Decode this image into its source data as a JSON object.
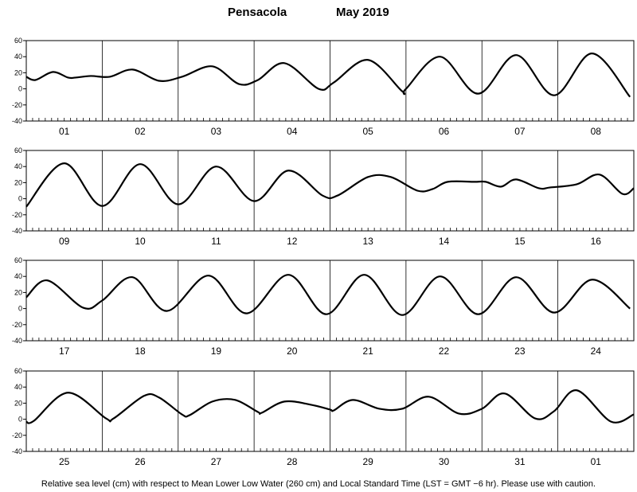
{
  "header": {
    "location": "Pensacola",
    "period": "May  2019"
  },
  "footer": {
    "note": "Relative sea level (cm) with respect to Mean Lower Low Water (260 cm) and Local Standard Time (LST = GMT −6 hr). Please use with caution."
  },
  "chart_data": {
    "type": "line",
    "ylabel": "",
    "xlabel": "",
    "ylim": [
      -40,
      60
    ],
    "y_ticks": [
      60,
      40,
      20,
      0,
      -20,
      -40
    ],
    "grid": "vertical day separators",
    "panels": [
      {
        "days": [
          "01",
          "02",
          "03",
          "04",
          "05",
          "06",
          "07",
          "08"
        ],
        "points": [
          [
            0.0,
            15
          ],
          [
            0.12,
            11
          ],
          [
            0.35,
            21
          ],
          [
            0.55,
            14
          ],
          [
            0.65,
            14
          ],
          [
            0.85,
            16
          ],
          [
            1.1,
            15
          ],
          [
            1.4,
            24
          ],
          [
            1.75,
            10
          ],
          [
            2.05,
            15
          ],
          [
            2.45,
            28
          ],
          [
            2.8,
            6
          ],
          [
            3.05,
            11
          ],
          [
            3.4,
            32
          ],
          [
            3.85,
            0
          ],
          [
            4.05,
            8
          ],
          [
            4.5,
            36
          ],
          [
            4.95,
            -3
          ],
          [
            5.0,
            0
          ],
          [
            5.45,
            40
          ],
          [
            5.95,
            -6
          ],
          [
            6.45,
            42
          ],
          [
            6.95,
            -8
          ],
          [
            7.45,
            44
          ],
          [
            7.95,
            -10
          ]
        ]
      },
      {
        "days": [
          "09",
          "10",
          "11",
          "12",
          "13",
          "14",
          "15",
          "16"
        ],
        "points": [
          [
            0.0,
            -10
          ],
          [
            0.5,
            44
          ],
          [
            1.0,
            -9
          ],
          [
            1.5,
            43
          ],
          [
            2.0,
            -7
          ],
          [
            2.5,
            40
          ],
          [
            3.0,
            -3
          ],
          [
            3.45,
            35
          ],
          [
            3.9,
            4
          ],
          [
            4.1,
            4
          ],
          [
            4.5,
            27
          ],
          [
            4.8,
            27
          ],
          [
            5.15,
            10
          ],
          [
            5.35,
            12
          ],
          [
            5.55,
            21
          ],
          [
            5.9,
            21
          ],
          [
            6.05,
            21
          ],
          [
            6.25,
            15
          ],
          [
            6.45,
            24
          ],
          [
            6.75,
            13
          ],
          [
            6.9,
            14
          ],
          [
            7.25,
            18
          ],
          [
            7.55,
            30
          ],
          [
            7.85,
            6
          ],
          [
            8.0,
            13
          ]
        ]
      },
      {
        "days": [
          "17",
          "18",
          "19",
          "20",
          "21",
          "22",
          "23",
          "24"
        ],
        "points": [
          [
            0.0,
            14
          ],
          [
            0.28,
            35
          ],
          [
            0.75,
            1
          ],
          [
            1.0,
            10
          ],
          [
            1.4,
            39
          ],
          [
            1.85,
            -3
          ],
          [
            2.4,
            41
          ],
          [
            2.9,
            -6
          ],
          [
            3.45,
            42
          ],
          [
            3.95,
            -7
          ],
          [
            4.45,
            42
          ],
          [
            4.95,
            -8
          ],
          [
            5.45,
            40
          ],
          [
            5.95,
            -7
          ],
          [
            6.45,
            39
          ],
          [
            6.95,
            -5
          ],
          [
            7.45,
            36
          ],
          [
            7.95,
            0
          ]
        ]
      },
      {
        "days": [
          "25",
          "26",
          "27",
          "28",
          "29",
          "30",
          "31",
          "01"
        ],
        "points": [
          [
            0.0,
            -3
          ],
          [
            0.1,
            -2
          ],
          [
            0.55,
            33
          ],
          [
            1.05,
            1
          ],
          [
            1.15,
            1
          ],
          [
            1.55,
            29
          ],
          [
            1.75,
            27
          ],
          [
            2.05,
            6
          ],
          [
            2.15,
            5
          ],
          [
            2.45,
            22
          ],
          [
            2.75,
            24
          ],
          [
            3.05,
            9
          ],
          [
            3.1,
            8
          ],
          [
            3.4,
            22
          ],
          [
            3.75,
            18
          ],
          [
            4.0,
            12
          ],
          [
            4.05,
            11
          ],
          [
            4.3,
            24
          ],
          [
            4.65,
            13
          ],
          [
            4.95,
            13
          ],
          [
            5.3,
            28
          ],
          [
            5.7,
            7
          ],
          [
            6.0,
            13
          ],
          [
            6.3,
            32
          ],
          [
            6.7,
            1
          ],
          [
            6.95,
            10
          ],
          [
            7.25,
            36
          ],
          [
            7.7,
            -3
          ],
          [
            8.0,
            6
          ]
        ]
      }
    ]
  }
}
